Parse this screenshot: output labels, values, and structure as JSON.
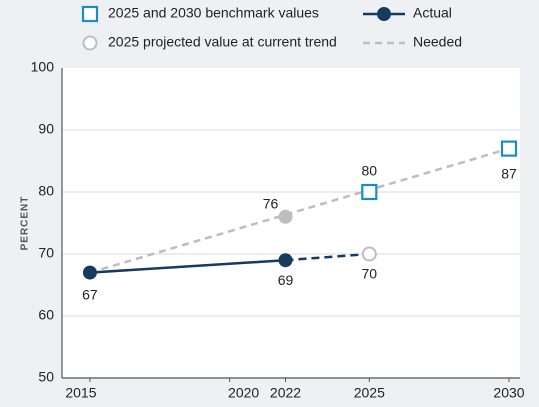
{
  "chart_data": {
    "type": "line",
    "y_label": "PERCENT",
    "xlim": [
      2014,
      2030
    ],
    "xticks": [
      2015,
      2020,
      2022,
      2025,
      2030
    ],
    "ylim": [
      50,
      100
    ],
    "yticks": [
      50,
      60,
      70,
      80,
      90,
      100
    ],
    "grid": true,
    "legend": "top",
    "series": [
      {
        "name": "Actual",
        "color": "#173a5e",
        "line": "solid",
        "marker": "circle",
        "x": [
          2015,
          2022
        ],
        "values": [
          67,
          69
        ]
      },
      {
        "color": "#173a5e",
        "line": "dashed",
        "x": [
          2022,
          2025
        ],
        "values": [
          69,
          70
        ]
      },
      {
        "name": "Needed",
        "color": "#bdbdbd",
        "line": "dashed",
        "x": [
          2015,
          2030
        ],
        "values": [
          67,
          87
        ]
      },
      {
        "name": "2025 and 2030 benchmark values",
        "color": "#1c8cc4",
        "marker": "square",
        "x": [
          2025,
          2030
        ],
        "values": [
          80,
          87
        ]
      },
      {
        "name": "2025 projected value at current trend",
        "color": "#bdbdbd",
        "marker": "open-circle",
        "x": [
          2025
        ],
        "values": [
          70
        ]
      },
      {
        "color": "#bdbdbd",
        "marker": "circle",
        "x": [
          2022
        ],
        "values": [
          76
        ]
      }
    ]
  }
}
